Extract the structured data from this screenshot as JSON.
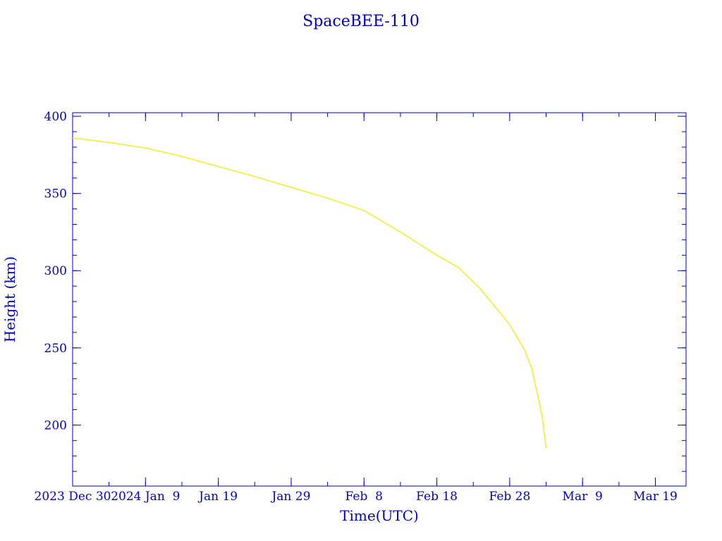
{
  "chart_data": {
    "type": "line",
    "title": "SpaceBEE-110",
    "xlabel": "Time(UTC)",
    "ylabel": "Height (km)",
    "xlim": [
      "2023-12-30T00:00",
      "2024-03-23T05:00"
    ],
    "ylim": [
      160.5,
      402.3
    ],
    "x_major_ticks": [
      "2023-12-30",
      "2024-01-09",
      "2024-01-19",
      "2024-01-29",
      "2024-02-08",
      "2024-02-18",
      "2024-02-28",
      "2024-03-09",
      "2024-03-19"
    ],
    "x_tick_labels": [
      "2023 Dec 30",
      "2024 Jan  9",
      "Jan 19",
      "Jan 29",
      "Feb  8",
      "Feb 18",
      "Feb 28",
      "Mar  9",
      "Mar 19"
    ],
    "x_minor_step_days": 5,
    "y_major_ticks": [
      200,
      250,
      300,
      350,
      400
    ],
    "y_tick_labels": [
      "200",
      "250",
      "300",
      "350",
      "400"
    ],
    "y_minor_step": 10,
    "grid": false,
    "colors": {
      "axes": "#0000c8",
      "line": "#f0f020"
    },
    "series": [
      {
        "x": [
          "2023-12-30",
          "2024-01-04",
          "2024-01-09",
          "2024-01-14",
          "2024-01-19",
          "2024-01-24",
          "2024-01-29",
          "2024-02-03",
          "2024-02-08",
          "2024-02-13",
          "2024-02-18",
          "2024-02-21",
          "2024-02-24",
          "2024-02-28",
          "2024-02-29",
          "2024-03-01",
          "2024-03-02",
          "2024-03-03",
          "2024-03-03T12:00",
          "2024-03-04"
        ],
        "y": [
          386,
          383,
          379.5,
          374,
          367.5,
          361,
          354,
          347,
          339,
          325,
          310,
          302,
          288,
          265,
          257,
          249,
          237,
          216,
          204,
          185
        ]
      }
    ]
  }
}
